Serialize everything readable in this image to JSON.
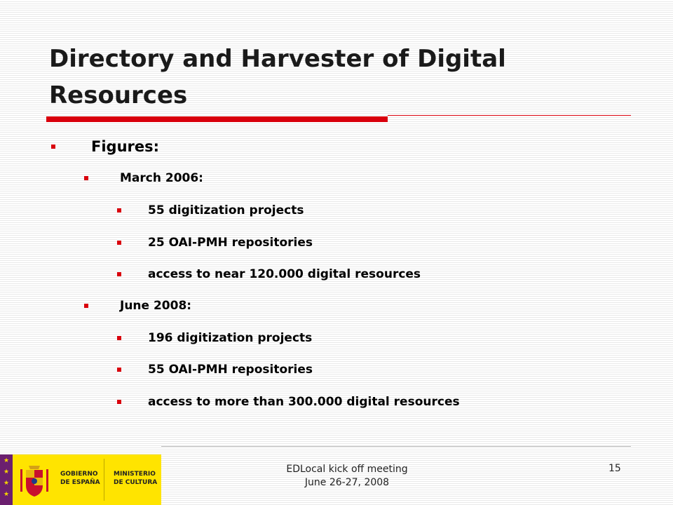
{
  "slide": {
    "title": "Directory and Harvester of Digital Resources",
    "heading": "Figures:",
    "sections": [
      {
        "label": "March 2006:",
        "items": [
          "55 digitization projects",
          "25 OAI-PMH repositories",
          "access to near 120.000 digital resources"
        ]
      },
      {
        "label": "June 2008:",
        "items": [
          "196 digitization projects",
          "55 OAI-PMH repositories",
          "access to more than 300.000 digital resources"
        ]
      }
    ]
  },
  "footer": {
    "line1": "EDLocal kick off meeting",
    "line2": "June 26-27, 2008",
    "page_number": "15"
  },
  "logo": {
    "gov_line1": "GOBIERNO",
    "gov_line2": "DE ESPAÑA",
    "min_line1": "MINISTERIO",
    "min_line2": "DE CULTURA"
  },
  "colors": {
    "accent": "#d9000d",
    "logo_yellow": "#ffe400",
    "eu_purple": "#6b1f6f"
  }
}
